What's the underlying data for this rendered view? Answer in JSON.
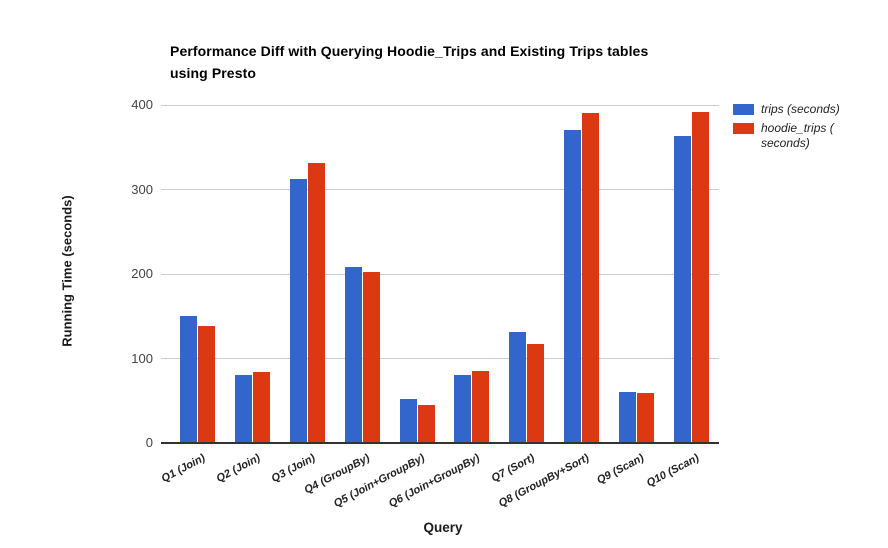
{
  "chart_data": {
    "type": "bar",
    "title": "Performance Diff with Querying Hoodie_Trips and Existing Trips tables using Presto",
    "title_lines": [
      "Performance Diff with Querying Hoodie_Trips and Existing Trips tables",
      "using Presto"
    ],
    "xlabel": "Query",
    "ylabel": "Running Time (seconds)",
    "ylim": [
      0,
      400
    ],
    "yticks": [
      0,
      100,
      200,
      300,
      400
    ],
    "grid": true,
    "legend_position": "right",
    "categories": [
      "Q1 (Join)",
      "Q2 (Join)",
      "Q3 (Join)",
      "Q4 (GroupBy)",
      "Q5 (Join+GroupBy)",
      "Q6 (Join+GroupBy)",
      "Q7 (Sort)",
      "Q8 (GroupBy+Sort)",
      "Q9 (Scan)",
      "Q10 (Scan)"
    ],
    "series": [
      {
        "name": "trips (seconds)",
        "color": "#3366cc",
        "values": [
          150,
          81,
          313,
          208,
          52,
          81,
          131,
          371,
          61,
          363
        ]
      },
      {
        "name": "hoodie_trips ( seconds)",
        "color": "#dc3912",
        "values": [
          138,
          84,
          332,
          202,
          45,
          85,
          117,
          390,
          59,
          392
        ]
      }
    ]
  }
}
